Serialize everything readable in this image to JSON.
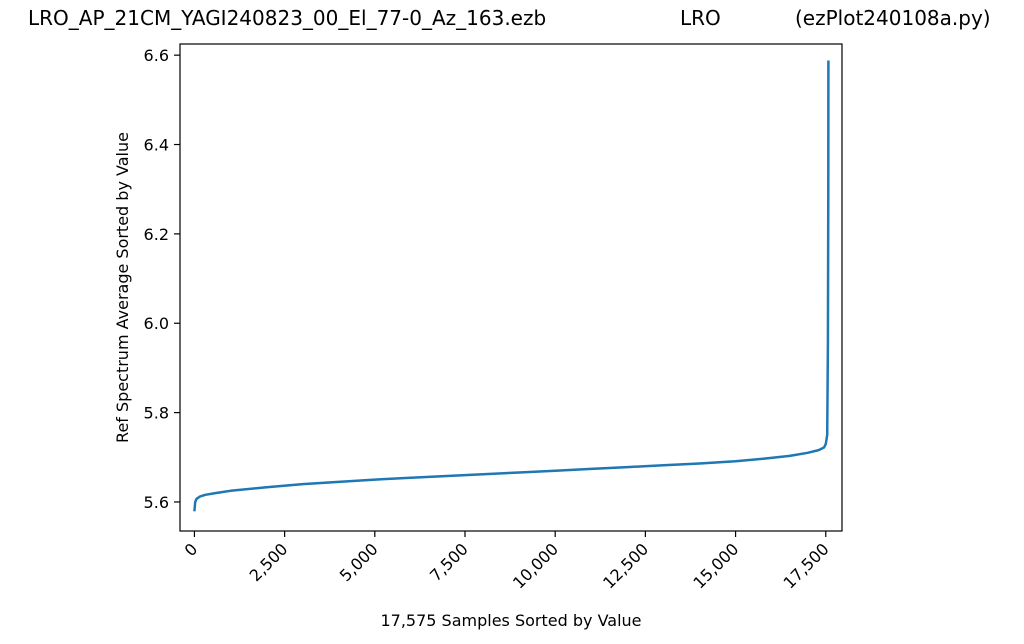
{
  "title": {
    "left": "LRO_AP_21CM_YAGI240823_00_El_77-0_Az_163.ezb",
    "center": "LRO",
    "right": "(ezPlot240108a.py)"
  },
  "chart_data": {
    "type": "line",
    "xlabel": "17,575 Samples Sorted by Value",
    "ylabel": "Ref Spectrum Average Sorted by Value",
    "xlim": [
      -400,
      17950
    ],
    "ylim": [
      5.535,
      6.625
    ],
    "xticks": [
      0,
      2500,
      5000,
      7500,
      10000,
      12500,
      15000,
      17500
    ],
    "xtick_labels": [
      "0",
      "2,500",
      "5,000",
      "7,500",
      "10,000",
      "12,500",
      "15,000",
      "17,500"
    ],
    "yticks": [
      5.6,
      5.8,
      6.0,
      6.2,
      6.4,
      6.6
    ],
    "ytick_labels": [
      "5.6",
      "5.8",
      "6.0",
      "6.2",
      "6.4",
      "6.6"
    ],
    "line_color": "#1f77b4",
    "grid": false,
    "series": [
      {
        "x": [
          0,
          20,
          60,
          150,
          300,
          600,
          1000,
          2000,
          3000,
          4000,
          5000,
          6000,
          7000,
          8000,
          9000,
          10000,
          11000,
          12000,
          13000,
          14000,
          15000,
          15800,
          16500,
          17000,
          17300,
          17450,
          17500,
          17540,
          17560,
          17570,
          17574
        ],
        "y": [
          5.579,
          5.6,
          5.607,
          5.612,
          5.616,
          5.62,
          5.625,
          5.633,
          5.64,
          5.645,
          5.65,
          5.654,
          5.658,
          5.662,
          5.666,
          5.67,
          5.674,
          5.678,
          5.682,
          5.686,
          5.691,
          5.697,
          5.703,
          5.71,
          5.716,
          5.722,
          5.73,
          5.75,
          5.95,
          6.3,
          6.588
        ]
      }
    ]
  }
}
